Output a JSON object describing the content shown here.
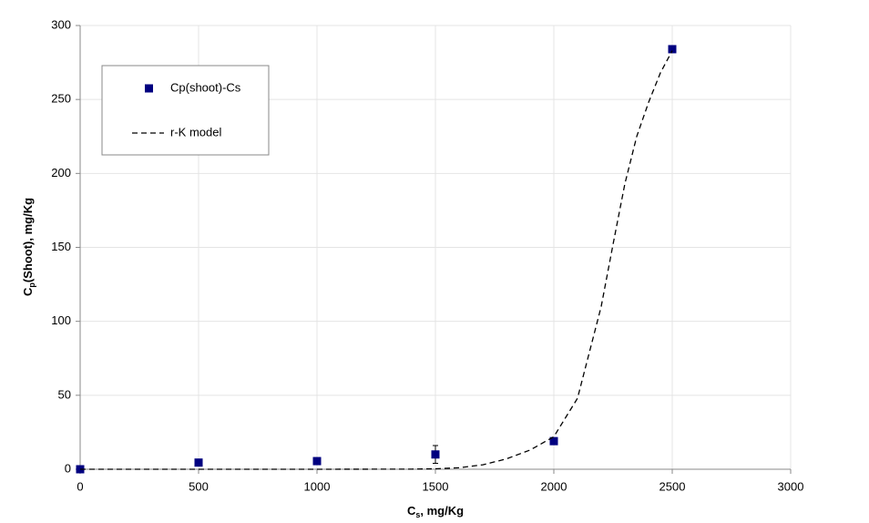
{
  "chart_data": {
    "type": "scatter",
    "x_label": {
      "main": "C",
      "sub": "s",
      "rest": ", mg/Kg"
    },
    "y_label": {
      "main": "C",
      "sub": "p",
      "rest": "(Shoot), mg/Kg"
    },
    "xlim": [
      0,
      3000
    ],
    "xticks": [
      0,
      500,
      1000,
      1500,
      2000,
      2500,
      3000
    ],
    "ylim": [
      0,
      300
    ],
    "yticks": [
      0,
      50,
      100,
      150,
      200,
      250,
      300
    ],
    "grid": true,
    "legend": "upper-left",
    "series": [
      {
        "name": "Cp(shoot)-Cs",
        "type": "scatter",
        "color": "#000080",
        "x": [
          0,
          500,
          1000,
          1500,
          2000,
          2500
        ],
        "values": [
          0,
          4.5,
          5.5,
          10,
          19,
          284
        ],
        "errors": [
          null,
          null,
          null,
          6,
          null,
          1.5
        ]
      },
      {
        "name": "r-K model",
        "type": "line",
        "color": "#000000",
        "dash": true,
        "x": [
          0,
          500,
          1000,
          1400,
          1500,
          1600,
          1700,
          1800,
          1900,
          2000,
          2100,
          2200,
          2250,
          2300,
          2350,
          2400,
          2450,
          2500
        ],
        "values": [
          0,
          0,
          0,
          0.1,
          0.3,
          1,
          3,
          7,
          13,
          22,
          48,
          110,
          152,
          193,
          225,
          248,
          268,
          283
        ]
      }
    ]
  }
}
